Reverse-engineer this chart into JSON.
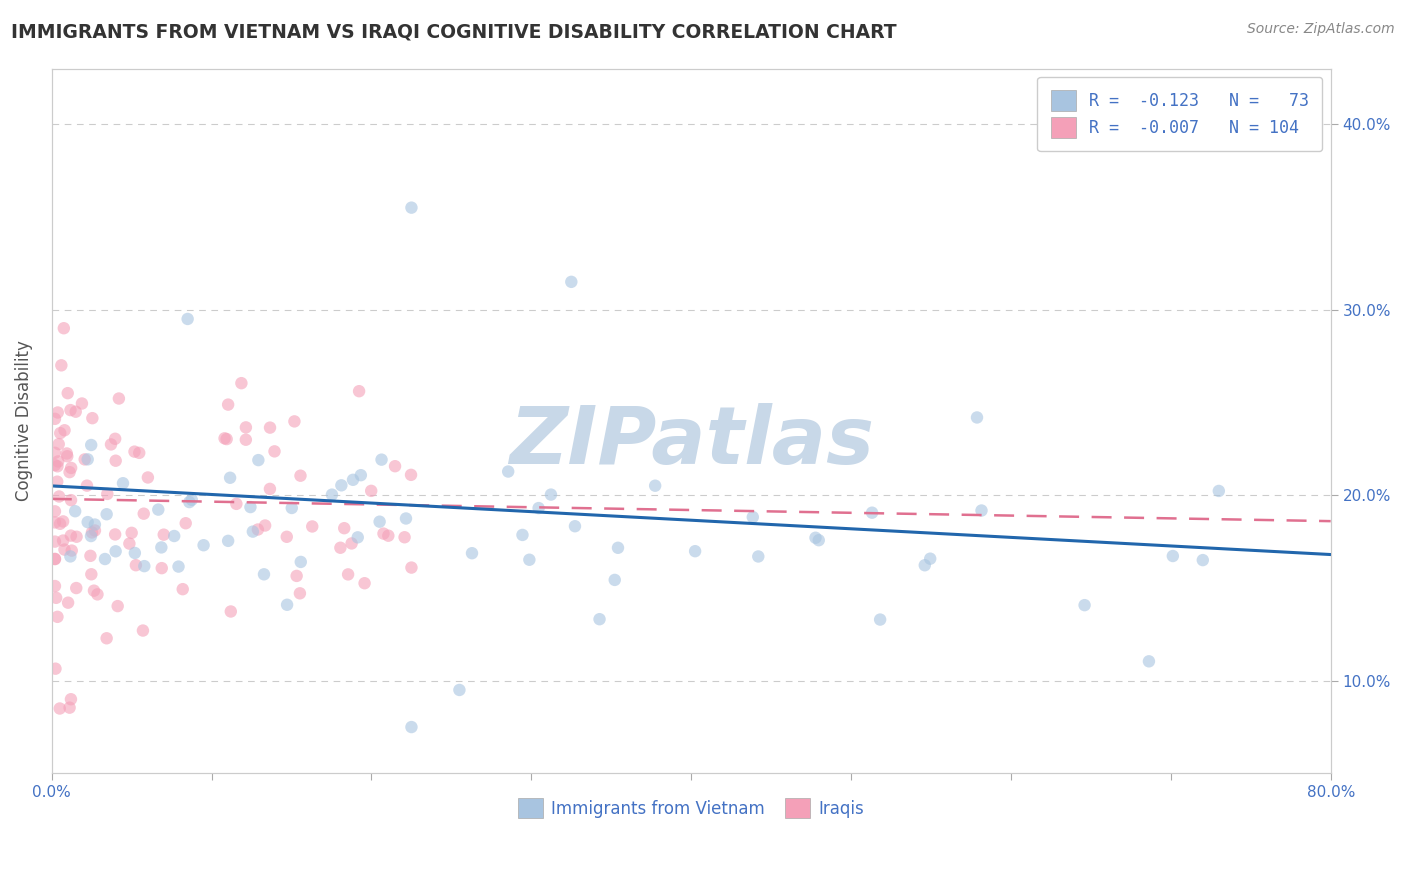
{
  "title": "IMMIGRANTS FROM VIETNAM VS IRAQI COGNITIVE DISABILITY CORRELATION CHART",
  "source": "Source: ZipAtlas.com",
  "ylabel": "Cognitive Disability",
  "xlim": [
    0.0,
    0.8
  ],
  "ylim": [
    0.05,
    0.43
  ],
  "legend1_label": "R =  -0.123   N =   73",
  "legend2_label": "R =  -0.007   N = 104",
  "color_vietnam": "#a8c4e0",
  "color_iraq": "#f4a0b8",
  "color_vietnam_line": "#2166ac",
  "color_iraq_line": "#e07090",
  "watermark_text": "ZIPatlas",
  "watermark_color": "#c8d8e8",
  "bottom_legend1": "Immigrants from Vietnam",
  "bottom_legend2": "Iraqis",
  "legend_text_color": "#4472c4",
  "title_color": "#333333",
  "source_color": "#888888",
  "grid_color": "#cccccc",
  "axis_label_color": "#4472c4",
  "seed_viet": 42,
  "seed_iraq": 99
}
